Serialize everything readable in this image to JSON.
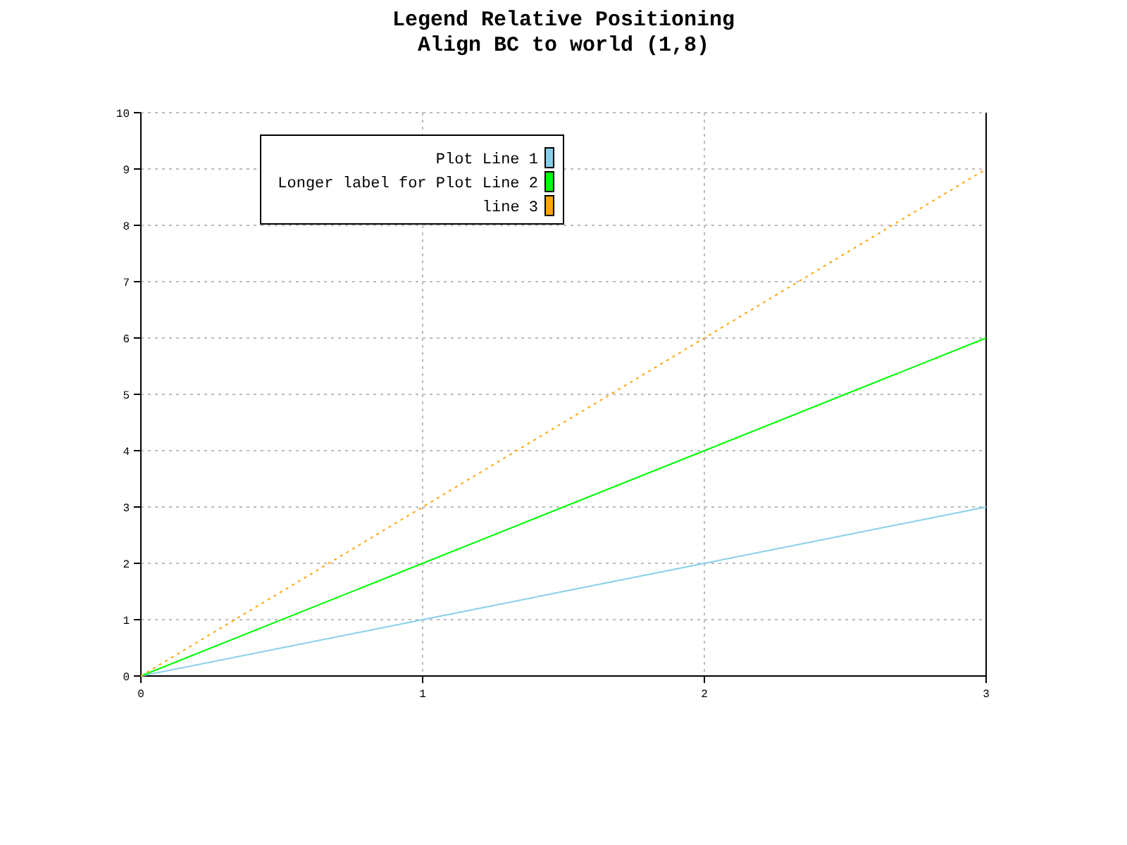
{
  "chart_data": {
    "type": "line",
    "title": "Legend Relative Positioning\nAlign BC to world (1,8)",
    "x": [
      0,
      1,
      2,
      3
    ],
    "series": [
      {
        "name": "Plot Line 1",
        "color": "#87ceeb",
        "values": [
          0,
          1,
          2,
          3
        ],
        "line_style": "solid"
      },
      {
        "name": "Longer label for Plot Line 2",
        "color": "#00ff00",
        "values": [
          0,
          2,
          4,
          6
        ],
        "line_style": "solid"
      },
      {
        "name": "line 3",
        "color": "#ffa500",
        "values": [
          0,
          3,
          6,
          9
        ],
        "line_style": "dotted"
      }
    ],
    "xlim": [
      0,
      3
    ],
    "xticks": [
      0,
      1,
      2,
      3
    ],
    "ylim": [
      0,
      10
    ],
    "yticks": [
      0,
      1,
      2,
      3,
      4,
      5,
      6,
      7,
      8,
      9,
      10
    ],
    "grid": true,
    "legend": "top left"
  }
}
